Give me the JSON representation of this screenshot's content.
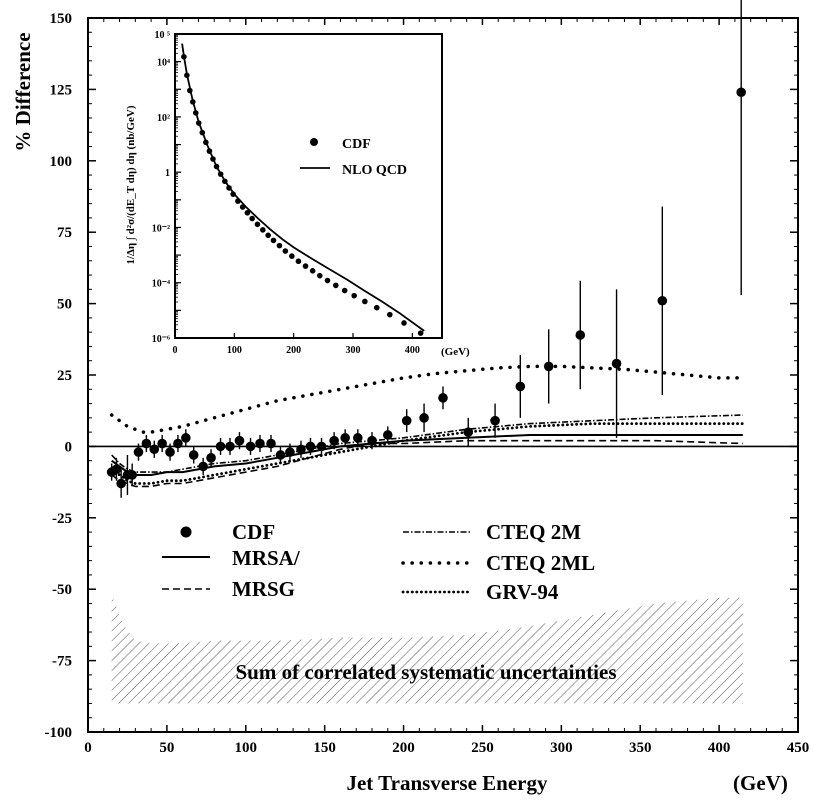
{
  "chart_data": [
    {
      "type": "scatter",
      "title": "",
      "xlabel": "Jet Transverse Energy",
      "xunit": "(GeV)",
      "ylabel": "% Difference",
      "xlim": [
        0,
        450
      ],
      "ylim": [
        -100,
        150
      ],
      "xticks": [
        0,
        50,
        100,
        150,
        200,
        250,
        300,
        350,
        400,
        450
      ],
      "yticks": [
        -100,
        -75,
        -50,
        -25,
        0,
        25,
        50,
        75,
        100,
        125,
        150
      ],
      "legend": [
        "CDF",
        "MRSA/",
        "MRSG",
        "CTEQ 2M",
        "CTEQ 2ML",
        "GRV-94"
      ],
      "band_label": "Sum of correlated systematic uncertainties",
      "band": {
        "x": [
          15,
          22,
          30,
          40,
          55,
          80,
          120,
          160,
          200,
          240,
          280,
          320,
          360,
          400,
          415
        ],
        "upper": [
          -52,
          -62,
          -68,
          -69,
          -69,
          -68,
          -68,
          -67,
          -67,
          -66,
          -63,
          -59,
          -55,
          -53,
          -53
        ],
        "lower": [
          -90,
          -90,
          -90,
          -90,
          -90,
          -90,
          -90,
          -90,
          -90,
          -90,
          -90,
          -90,
          -90,
          -90,
          -90
        ]
      },
      "series": [
        {
          "name": "CDF",
          "style": "points",
          "x": [
            15,
            18,
            21,
            25,
            28,
            32,
            37,
            42,
            47,
            52,
            57,
            62,
            67,
            73,
            78,
            84,
            90,
            96,
            103,
            109,
            116,
            122,
            128,
            135,
            141,
            148,
            156,
            163,
            171,
            180,
            190,
            202,
            213,
            225,
            241,
            258,
            274,
            292,
            312,
            335,
            364,
            414
          ],
          "y": [
            -9,
            -8,
            -13,
            -10,
            -10,
            -2,
            1,
            -1,
            1,
            -2,
            1,
            3,
            -3,
            -7,
            -4,
            0,
            0,
            2,
            0,
            1,
            1,
            -3,
            -2,
            -1,
            0,
            0,
            2,
            3,
            3,
            2,
            4,
            9,
            10,
            17,
            5,
            9,
            21,
            28,
            39,
            29,
            51,
            124
          ],
          "err": [
            3,
            4,
            5,
            7,
            4,
            3,
            3,
            3,
            3,
            3,
            3,
            3,
            3,
            3,
            3,
            3,
            3,
            3,
            3,
            3,
            3,
            3,
            3,
            3,
            3,
            3,
            3,
            3,
            3,
            3,
            3,
            4,
            5,
            4,
            5,
            6,
            11,
            13,
            19,
            26,
            33,
            71
          ]
        },
        {
          "name": "MRSA/",
          "style": "solid",
          "x": [
            15,
            20,
            25,
            30,
            40,
            50,
            60,
            80,
            100,
            120,
            140,
            160,
            180,
            200,
            240,
            280,
            320,
            360,
            415
          ],
          "y": [
            -5,
            -7,
            -9,
            -10,
            -10,
            -9,
            -9,
            -7,
            -6,
            -4,
            -2,
            0,
            1,
            2,
            3,
            4,
            4,
            4,
            4
          ]
        },
        {
          "name": "MRSG",
          "style": "dashed",
          "x": [
            15,
            20,
            25,
            30,
            40,
            50,
            60,
            80,
            100,
            120,
            140,
            160,
            180,
            200,
            240,
            280,
            320,
            360,
            415
          ],
          "y": [
            -10,
            -12,
            -13,
            -14,
            -14,
            -13,
            -13,
            -11,
            -9,
            -7,
            -4,
            -1,
            1,
            1,
            2,
            2,
            2,
            2,
            1
          ]
        },
        {
          "name": "CTEQ 2M",
          "style": "dash-dot",
          "x": [
            15,
            20,
            25,
            30,
            40,
            50,
            60,
            80,
            100,
            120,
            140,
            160,
            180,
            200,
            240,
            280,
            320,
            360,
            415
          ],
          "y": [
            -3,
            -6,
            -8,
            -9,
            -9,
            -9,
            -8,
            -6,
            -5,
            -3,
            -1,
            1,
            2,
            3,
            6,
            8,
            9,
            10,
            11
          ]
        },
        {
          "name": "CTEQ 2ML",
          "style": "sparse-dot",
          "x": [
            15,
            20,
            25,
            30,
            35,
            40,
            50,
            60,
            80,
            100,
            120,
            140,
            160,
            180,
            200,
            220,
            240,
            260,
            280,
            300,
            320,
            340,
            360,
            380,
            400,
            415
          ],
          "y": [
            11,
            9,
            7,
            6,
            5,
            5,
            6,
            7,
            10,
            13,
            16,
            18,
            20,
            22,
            24,
            25.5,
            26.5,
            27.5,
            28,
            28,
            27.5,
            27,
            26,
            25,
            24,
            24
          ]
        },
        {
          "name": "GRV-94",
          "style": "dense-dot",
          "x": [
            15,
            20,
            25,
            30,
            40,
            50,
            60,
            80,
            100,
            120,
            140,
            160,
            180,
            200,
            240,
            280,
            320,
            360,
            415
          ],
          "y": [
            -8,
            -10,
            -12,
            -13,
            -13,
            -12,
            -12,
            -10,
            -8,
            -6,
            -4,
            -2,
            0,
            2,
            5,
            7,
            8,
            8,
            8
          ]
        }
      ]
    },
    {
      "type": "line",
      "title": "",
      "xlabel": "(GeV)",
      "ylabel": "1/Δη ∫ d²σ/(dE_T dη) dη (nb/GeV)",
      "xlim": [
        0,
        450
      ],
      "yscale": "log",
      "ylim": [
        1e-06,
        100000.0
      ],
      "xticks": [
        0,
        100,
        200,
        300,
        400
      ],
      "legend": [
        "CDF",
        "NLO QCD"
      ],
      "series": [
        {
          "name": "CDF",
          "style": "points",
          "x": [
            15,
            20,
            25,
            30,
            35,
            40,
            46,
            52,
            58,
            64,
            70,
            77,
            84,
            91,
            98,
            106,
            114,
            122,
            130,
            139,
            148,
            157,
            166,
            176,
            186,
            197,
            208,
            220,
            232,
            244,
            257,
            271,
            286,
            302,
            320,
            340,
            362,
            386,
            414
          ],
          "y": [
            15000,
            3200,
            900,
            350,
            140,
            60,
            27,
            12,
            5.8,
            3.0,
            1.6,
            0.85,
            0.47,
            0.27,
            0.16,
            0.09,
            0.055,
            0.034,
            0.021,
            0.013,
            0.0082,
            0.0052,
            0.0034,
            0.0022,
            0.0014,
            0.00092,
            0.0006,
            0.0004,
            0.00027,
            0.00018,
            0.00012,
            8e-05,
            5.2e-05,
            3.4e-05,
            2.1e-05,
            1.25e-05,
            7e-06,
            3.5e-06,
            1.5e-06
          ]
        },
        {
          "name": "NLO QCD",
          "style": "solid",
          "x": [
            12,
            15,
            20,
            30,
            40,
            55,
            70,
            85,
            100,
            120,
            140,
            160,
            180,
            200,
            230,
            260,
            290,
            320,
            350,
            380,
            420
          ],
          "y": [
            45000,
            16000,
            3500,
            380,
            65,
            9,
            1.6,
            0.45,
            0.16,
            0.054,
            0.021,
            0.0087,
            0.0039,
            0.0019,
            0.00075,
            0.00031,
            0.00013,
            5e-05,
            2e-05,
            7.5e-06,
            1.8e-06
          ]
        }
      ]
    }
  ]
}
